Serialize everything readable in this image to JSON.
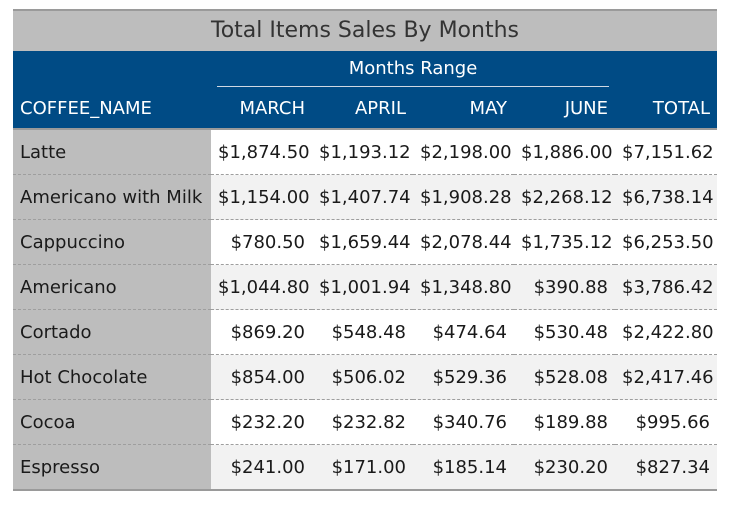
{
  "chart_data": {
    "type": "table",
    "title": "Total Items Sales By Months",
    "spanner_label": "Months Range",
    "stub_header": "COFFEE_NAME",
    "columns": [
      "MARCH",
      "APRIL",
      "MAY",
      "JUNE"
    ],
    "total_header": "TOTAL",
    "rows": [
      {
        "name": "Latte",
        "values": [
          "$1,874.50",
          "$1,193.12",
          "$2,198.00",
          "$1,886.00"
        ],
        "total": "$7,151.62"
      },
      {
        "name": "Americano with Milk",
        "values": [
          "$1,154.00",
          "$1,407.74",
          "$1,908.28",
          "$2,268.12"
        ],
        "total": "$6,738.14"
      },
      {
        "name": "Cappuccino",
        "values": [
          "$780.50",
          "$1,659.44",
          "$2,078.44",
          "$1,735.12"
        ],
        "total": "$6,253.50"
      },
      {
        "name": "Americano",
        "values": [
          "$1,044.80",
          "$1,001.94",
          "$1,348.80",
          "$390.88"
        ],
        "total": "$3,786.42"
      },
      {
        "name": "Cortado",
        "values": [
          "$869.20",
          "$548.48",
          "$474.64",
          "$530.48"
        ],
        "total": "$2,422.80"
      },
      {
        "name": "Hot Chocolate",
        "values": [
          "$854.00",
          "$506.02",
          "$529.36",
          "$528.08"
        ],
        "total": "$2,417.46"
      },
      {
        "name": "Cocoa",
        "values": [
          "$232.20",
          "$232.82",
          "$340.76",
          "$189.88"
        ],
        "total": "$995.66"
      },
      {
        "name": "Espresso",
        "values": [
          "$241.00",
          "$171.00",
          "$185.14",
          "$230.20"
        ],
        "total": "$827.34"
      }
    ]
  },
  "colors": {
    "header_bg": "#004b85",
    "title_bg": "#bdbdbd",
    "stub_bg": "#bdbdbd",
    "row_stripe": "#f2f2f2"
  }
}
